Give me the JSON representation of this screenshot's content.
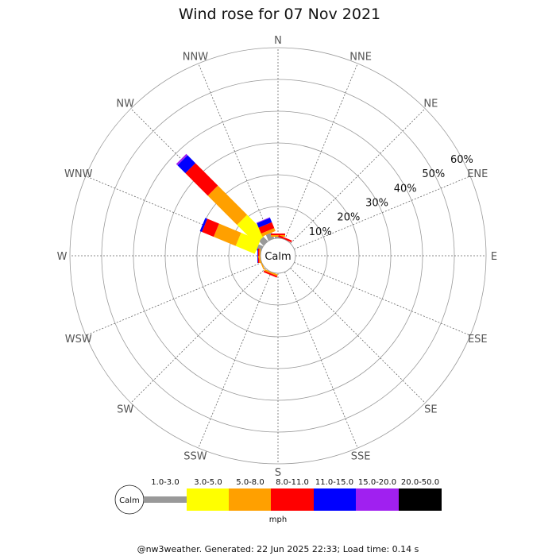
{
  "chart_data": {
    "type": "wind-rose",
    "title": "Wind rose for 07 Nov 2021",
    "directions": [
      "N",
      "NNE",
      "NE",
      "ENE",
      "E",
      "ESE",
      "SE",
      "SSE",
      "S",
      "SSW",
      "SW",
      "WSW",
      "W",
      "WNW",
      "NW",
      "NNW"
    ],
    "radial_ticks": [
      "10%",
      "20%",
      "30%",
      "40%",
      "50%",
      "60%"
    ],
    "radial_values": [
      10,
      20,
      30,
      40,
      50,
      60
    ],
    "radial_max": 60,
    "calm_label": "Calm",
    "units": "mph",
    "legend_bins": [
      "1.0-3.0",
      "3.0-5.0",
      "5.0-8.0",
      "8.0-11.0",
      "11.0-15.0",
      "15.0-20.0",
      "20.0-50.0"
    ],
    "colors": [
      "#999999",
      "#ffff00",
      "#ffa000",
      "#ff0000",
      "#0000ff",
      "#a020f0",
      "#000000"
    ],
    "series": [
      {
        "direction": "NW",
        "segments": [
          2.0,
          8.5,
          13.0,
          10.0,
          3.5,
          0.6,
          0
        ]
      },
      {
        "direction": "WNW",
        "segments": [
          1.5,
          6.5,
          7.5,
          4.0,
          0.7,
          0,
          0
        ]
      },
      {
        "direction": "NNW",
        "segments": [
          2.0,
          0,
          1.0,
          2.0,
          1.5,
          0.2,
          0
        ]
      },
      {
        "direction": "N",
        "segments": [
          0.5,
          0,
          0.5,
          0.5,
          0,
          0,
          0
        ]
      },
      {
        "direction": "NNE",
        "segments": [
          0,
          0,
          0,
          0.6,
          0,
          0,
          0
        ]
      },
      {
        "direction": "W",
        "segments": [
          0,
          0,
          0.4,
          0.4,
          0.2,
          0,
          0
        ]
      },
      {
        "direction": "WSW",
        "segments": [
          0,
          0,
          0.4,
          0,
          0,
          0,
          0
        ]
      },
      {
        "direction": "SSW",
        "segments": [
          0,
          0,
          0.5,
          0.5,
          0,
          0,
          0
        ]
      }
    ]
  },
  "footer": "@nw3weather. Generated: 22 Jun 2025 22:33; Load time: 0.14 s"
}
